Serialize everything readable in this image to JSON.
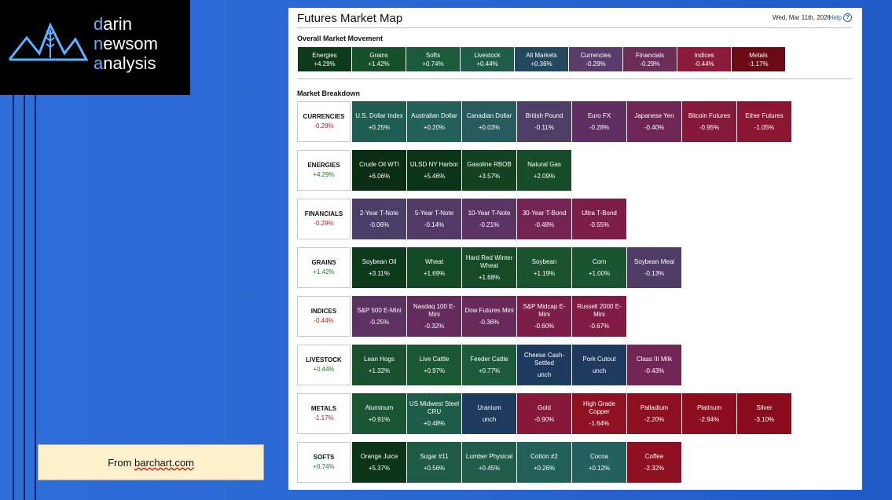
{
  "logo": {
    "lines": [
      [
        "d",
        "arin"
      ],
      [
        "n",
        "ewsom"
      ],
      [
        "a",
        "nalysis"
      ]
    ]
  },
  "source": {
    "prefix": "From ",
    "link": "barchart.com"
  },
  "map": {
    "title": "Futures Market Map",
    "date": "Wed, Mar 11th, 2026",
    "help": "Help",
    "overall_label": "Overall Market Movement",
    "breakdown_label": "Market Breakdown",
    "overall": [
      {
        "name": "Energies",
        "change": "+4.29%",
        "color": "#0d3a1a"
      },
      {
        "name": "Grains",
        "change": "+1.42%",
        "color": "#15502a"
      },
      {
        "name": "Softs",
        "change": "+0.74%",
        "color": "#1b5a3a"
      },
      {
        "name": "Livestock",
        "change": "+0.44%",
        "color": "#1f5d4a"
      },
      {
        "name": "All Markets",
        "change": "+0.36%",
        "color": "#24495e"
      },
      {
        "name": "Currencies",
        "change": "-0.29%",
        "color": "#5a3c6a"
      },
      {
        "name": "Financials",
        "change": "-0.29%",
        "color": "#6a2e58"
      },
      {
        "name": "Indices",
        "change": "-0.44%",
        "color": "#8c1a3a"
      },
      {
        "name": "Metals",
        "change": "-1.17%",
        "color": "#6a0a14"
      }
    ],
    "rows": [
      {
        "name": "CURRENCIES",
        "change": "-0.29%",
        "sign": "neg",
        "cells": [
          {
            "name": "U.S. Dollar Index",
            "change": "+0.25%",
            "color": "#1f5d52"
          },
          {
            "name": "Australian Dollar",
            "change": "+0.20%",
            "color": "#24605a"
          },
          {
            "name": "Canadian Dollar",
            "change": "+0.03%",
            "color": "#285a5e"
          },
          {
            "name": "British Pound",
            "change": "-0.11%",
            "color": "#4e3f66"
          },
          {
            "name": "Euro FX",
            "change": "-0.28%",
            "color": "#5e2f60"
          },
          {
            "name": "Japanese Yen",
            "change": "-0.40%",
            "color": "#6e2656"
          },
          {
            "name": "Bitcoin Futures",
            "change": "-0.95%",
            "color": "#86183a"
          },
          {
            "name": "Ether Futures",
            "change": "-1.05%",
            "color": "#8a1632"
          }
        ]
      },
      {
        "name": "ENERGIES",
        "change": "+4.29%",
        "sign": "pos",
        "cells": [
          {
            "name": "Crude Oil WTI",
            "change": "+6.06%",
            "color": "#0a2e14"
          },
          {
            "name": "ULSD NY Harbor",
            "change": "+5.46%",
            "color": "#0c3418"
          },
          {
            "name": "Gasoline RBOB",
            "change": "+3.57%",
            "color": "#12421f"
          },
          {
            "name": "Natural Gas",
            "change": "+2.09%",
            "color": "#174c28"
          }
        ]
      },
      {
        "name": "FINANCIALS",
        "change": "-0.29%",
        "sign": "neg",
        "cells": [
          {
            "name": "2-Year T-Note",
            "change": "-0.06%",
            "color": "#4a3e68"
          },
          {
            "name": "5-Year T-Note",
            "change": "-0.14%",
            "color": "#523a66"
          },
          {
            "name": "10-Year T-Note",
            "change": "-0.21%",
            "color": "#5a3462"
          },
          {
            "name": "30-Year T-Bond",
            "change": "-0.48%",
            "color": "#742452"
          },
          {
            "name": "Ultra T-Bond",
            "change": "-0.55%",
            "color": "#7c1e48"
          }
        ]
      },
      {
        "name": "GRAINS",
        "change": "+1.42%",
        "sign": "pos",
        "cells": [
          {
            "name": "Soybean Oil",
            "change": "+3.11%",
            "color": "#0e3a1c"
          },
          {
            "name": "Wheat",
            "change": "+1.69%",
            "color": "#154a26"
          },
          {
            "name": "Hard Red Winter Wheat",
            "change": "+1.68%",
            "color": "#164b27"
          },
          {
            "name": "Soybean",
            "change": "+1.19%",
            "color": "#1a532e"
          },
          {
            "name": "Corn",
            "change": "+1.00%",
            "color": "#1b5430"
          },
          {
            "name": "Soybean Meal",
            "change": "-0.13%",
            "color": "#4e3c66"
          }
        ]
      },
      {
        "name": "INDICES",
        "change": "-0.44%",
        "sign": "neg",
        "cells": [
          {
            "name": "S&P 500 E-Mini",
            "change": "-0.25%",
            "color": "#5c3262"
          },
          {
            "name": "Nasdaq 100 E-Mini",
            "change": "-0.32%",
            "color": "#642c5c"
          },
          {
            "name": "Dow Futures Mini",
            "change": "-0.36%",
            "color": "#682a5a"
          },
          {
            "name": "S&P Midcap E-Mini",
            "change": "-0.60%",
            "color": "#7c1e48"
          },
          {
            "name": "Russell 2000 E-Mini",
            "change": "-0.67%",
            "color": "#801c44"
          }
        ]
      },
      {
        "name": "LIVESTOCK",
        "change": "+0.44%",
        "sign": "pos",
        "cells": [
          {
            "name": "Lean Hogs",
            "change": "+1.32%",
            "color": "#185030"
          },
          {
            "name": "Live Cattle",
            "change": "+0.97%",
            "color": "#1a5834"
          },
          {
            "name": "Feeder Cattle",
            "change": "+0.77%",
            "color": "#1c5a3a"
          },
          {
            "name": "Cheese Cash-Settled",
            "change": "unch",
            "color": "#1e3a5e"
          },
          {
            "name": "Pork Cutout",
            "change": "unch",
            "color": "#1e3a5e"
          },
          {
            "name": "Class III Milk",
            "change": "-0.43%",
            "color": "#722456"
          }
        ]
      },
      {
        "name": "METALS",
        "change": "-1.17%",
        "sign": "neg",
        "cells": [
          {
            "name": "Aluminum",
            "change": "+0.91%",
            "color": "#1a5634"
          },
          {
            "name": "US Midwest Steel CRU",
            "change": "+0.48%",
            "color": "#1d5c48"
          },
          {
            "name": "Uranium",
            "change": "unch",
            "color": "#1e3a5e"
          },
          {
            "name": "Gold",
            "change": "-0.90%",
            "color": "#86183a"
          },
          {
            "name": "High Grade Copper",
            "change": "-1.64%",
            "color": "#8e1222"
          },
          {
            "name": "Palladium",
            "change": "-2.20%",
            "color": "#8e1020"
          },
          {
            "name": "Platinum",
            "change": "-2.94%",
            "color": "#8c0e1e"
          },
          {
            "name": "Silver",
            "change": "-3.10%",
            "color": "#8a0c1c"
          }
        ]
      },
      {
        "name": "SOFTS",
        "change": "+0.74%",
        "sign": "pos",
        "cells": [
          {
            "name": "Orange Juice",
            "change": "+5.37%",
            "color": "#0c3418"
          },
          {
            "name": "Sugar #11",
            "change": "+0.56%",
            "color": "#1e5a44"
          },
          {
            "name": "Lumber Physical",
            "change": "+0.45%",
            "color": "#1f5c4a"
          },
          {
            "name": "Cotton #2",
            "change": "+0.26%",
            "color": "#22605a"
          },
          {
            "name": "Cocoa",
            "change": "+0.12%",
            "color": "#24605e"
          },
          {
            "name": "Coffee",
            "change": "-2.32%",
            "color": "#8e1020"
          }
        ]
      }
    ]
  }
}
